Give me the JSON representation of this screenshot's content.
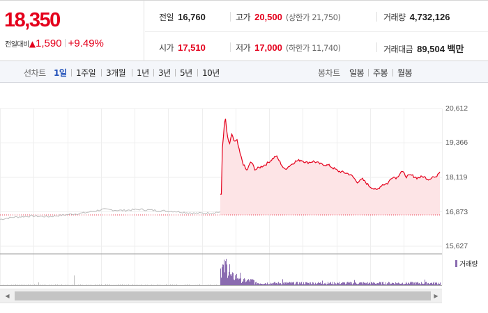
{
  "quote": {
    "price": "18,350",
    "change_label": "전일대비",
    "change_arrow": "▲",
    "change_value": "1,590",
    "change_pct": "+9.49%"
  },
  "stats": {
    "prev_close_label": "전일",
    "prev_close": "16,760",
    "high_label": "고가",
    "high": "20,500",
    "upper_limit": "(상한가 21,750)",
    "volume_label": "거래량",
    "volume": "4,732,126",
    "open_label": "시가",
    "open": "17,510",
    "low_label": "저가",
    "low": "17,000",
    "lower_limit": "(하한가 11,740)",
    "amount_label": "거래대금",
    "amount": "89,504 백만"
  },
  "toolbar": {
    "line_chart_label": "선차트",
    "line_periods": [
      "1일",
      "1주일",
      "3개월",
      "1년",
      "3년",
      "5년",
      "10년"
    ],
    "active_period": "1일",
    "candle_chart_label": "봉차트",
    "candle_periods": [
      "일봉",
      "주봉",
      "월봉"
    ]
  },
  "chart_data": {
    "type": "line",
    "y_ticks": [
      "20,612",
      "19,366",
      "18,119",
      "16,873",
      "15,627"
    ],
    "ylim": [
      15627,
      20612
    ],
    "prev_close_line": 16760,
    "volume_legend": "거래량",
    "colors": {
      "up": "#e4001c",
      "fill": "#fde4e6",
      "before_open": "#bbbbbb",
      "volume": "#8a6bb0"
    }
  }
}
